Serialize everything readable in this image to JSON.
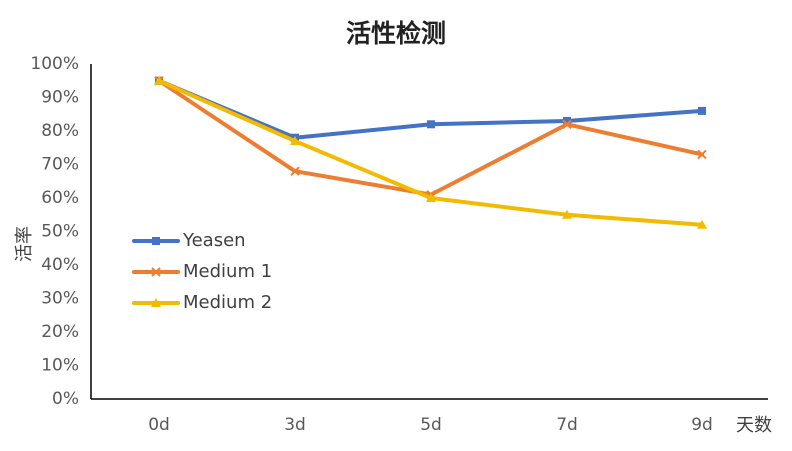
{
  "chart_data": {
    "type": "line",
    "title": "活性检测",
    "xlabel": "天数",
    "ylabel": "活率",
    "categories": [
      "0d",
      "3d",
      "5d",
      "7d",
      "9d"
    ],
    "ylim": [
      0,
      100
    ],
    "yticks": [
      "0%",
      "10%",
      "20%",
      "30%",
      "40%",
      "50%",
      "60%",
      "70%",
      "80%",
      "90%",
      "100%"
    ],
    "grid": false,
    "legend_position": "left",
    "series": [
      {
        "name": "Yeasen",
        "color": "#4472C4",
        "marker": "square",
        "values": [
          95,
          78,
          82,
          83,
          86
        ]
      },
      {
        "name": "Medium 1",
        "color": "#ED7D31",
        "marker": "x",
        "values": [
          95,
          68,
          61,
          82,
          73
        ]
      },
      {
        "name": "Medium 2",
        "color": "#F2BA00",
        "marker": "triangle",
        "values": [
          95,
          77,
          60,
          55,
          52
        ]
      }
    ]
  }
}
